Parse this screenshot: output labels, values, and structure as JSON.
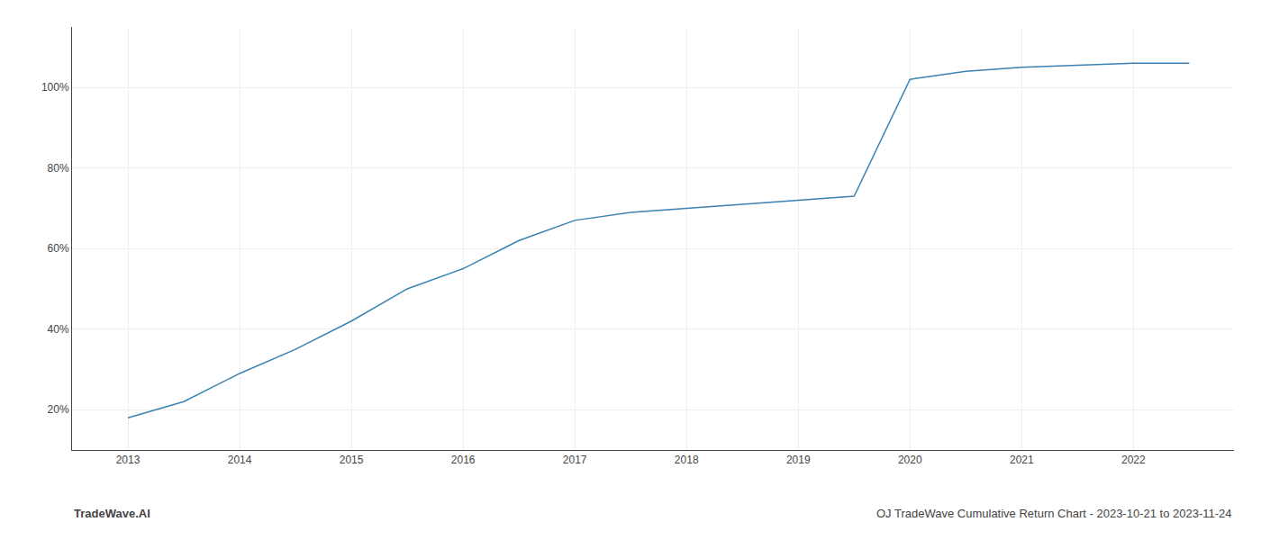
{
  "chart_data": {
    "type": "line",
    "x": [
      2013,
      2013.5,
      2014,
      2014.5,
      2015,
      2015.5,
      2016,
      2016.5,
      2017,
      2017.25,
      2017.5,
      2018,
      2018.5,
      2019,
      2019.25,
      2019.5,
      2020,
      2020.25,
      2020.5,
      2021,
      2021.5,
      2022,
      2022.5
    ],
    "values": [
      18,
      22,
      29,
      35,
      42,
      50,
      55,
      62,
      67,
      68,
      69,
      70,
      71,
      72,
      72.5,
      73,
      102,
      103,
      104,
      105,
      105.5,
      106,
      106
    ],
    "color": "#3a82b5",
    "xlim": [
      2012.5,
      2022.9
    ],
    "ylim": [
      10,
      115
    ],
    "xticks": [
      2013,
      2014,
      2015,
      2016,
      2017,
      2018,
      2019,
      2020,
      2021,
      2022
    ],
    "yticks": [
      {
        "value": 20,
        "label": "20%"
      },
      {
        "value": 40,
        "label": "40%"
      },
      {
        "value": 60,
        "label": "60%"
      },
      {
        "value": 80,
        "label": "80%"
      },
      {
        "value": 100,
        "label": "100%"
      }
    ],
    "grid": true,
    "annotations": [
      {
        "text": "TradeWave.AI"
      },
      {
        "text": "OJ TradeWave Cumulative Return Chart - 2023-10-21 to 2023-11-24"
      }
    ]
  }
}
